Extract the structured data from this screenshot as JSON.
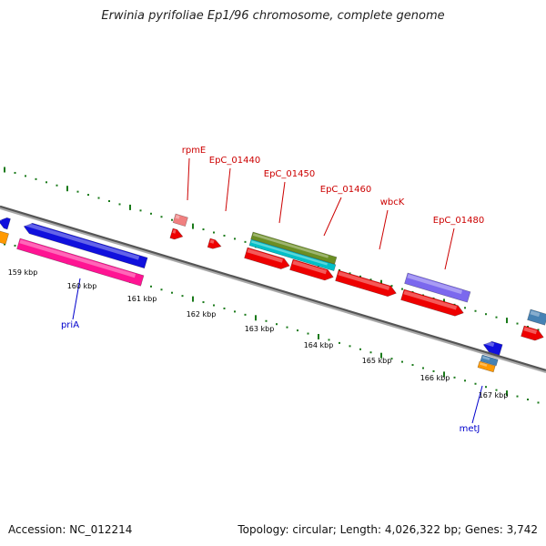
{
  "title": "Erwinia pyrifoliae Ep1/96 chromosome, complete genome",
  "footer": {
    "accession": "Accession: NC_012214",
    "stats": "Topology: circular; Length: 4,026,322 bp; Genes: 3,742"
  },
  "ticks": [
    "159 kbp",
    "160 kbp",
    "161 kbp",
    "162 kbp",
    "163 kbp",
    "164 kbp",
    "165 kbp",
    "166 kbp",
    "167 kbp"
  ],
  "genes": {
    "above": [
      "rpmE",
      "EpC_01440",
      "EpC_01450",
      "EpC_01460",
      "wbcK",
      "EpC_01480"
    ],
    "below": [
      "priA",
      "metJ"
    ]
  },
  "colors": {
    "backbone": "#808080",
    "tick": "#1a7a1a",
    "label_above": "#cc0000",
    "label_below": "#0000cc",
    "cds_red": "#ee0000",
    "blue": "#1010dd",
    "magenta": "#ff1493",
    "orange": "#ff9900",
    "olive": "#6b8e23",
    "cyan": "#00c0c8",
    "purple": "#7b68ee",
    "steelblue": "#4682b4",
    "pink": "#f08080"
  }
}
